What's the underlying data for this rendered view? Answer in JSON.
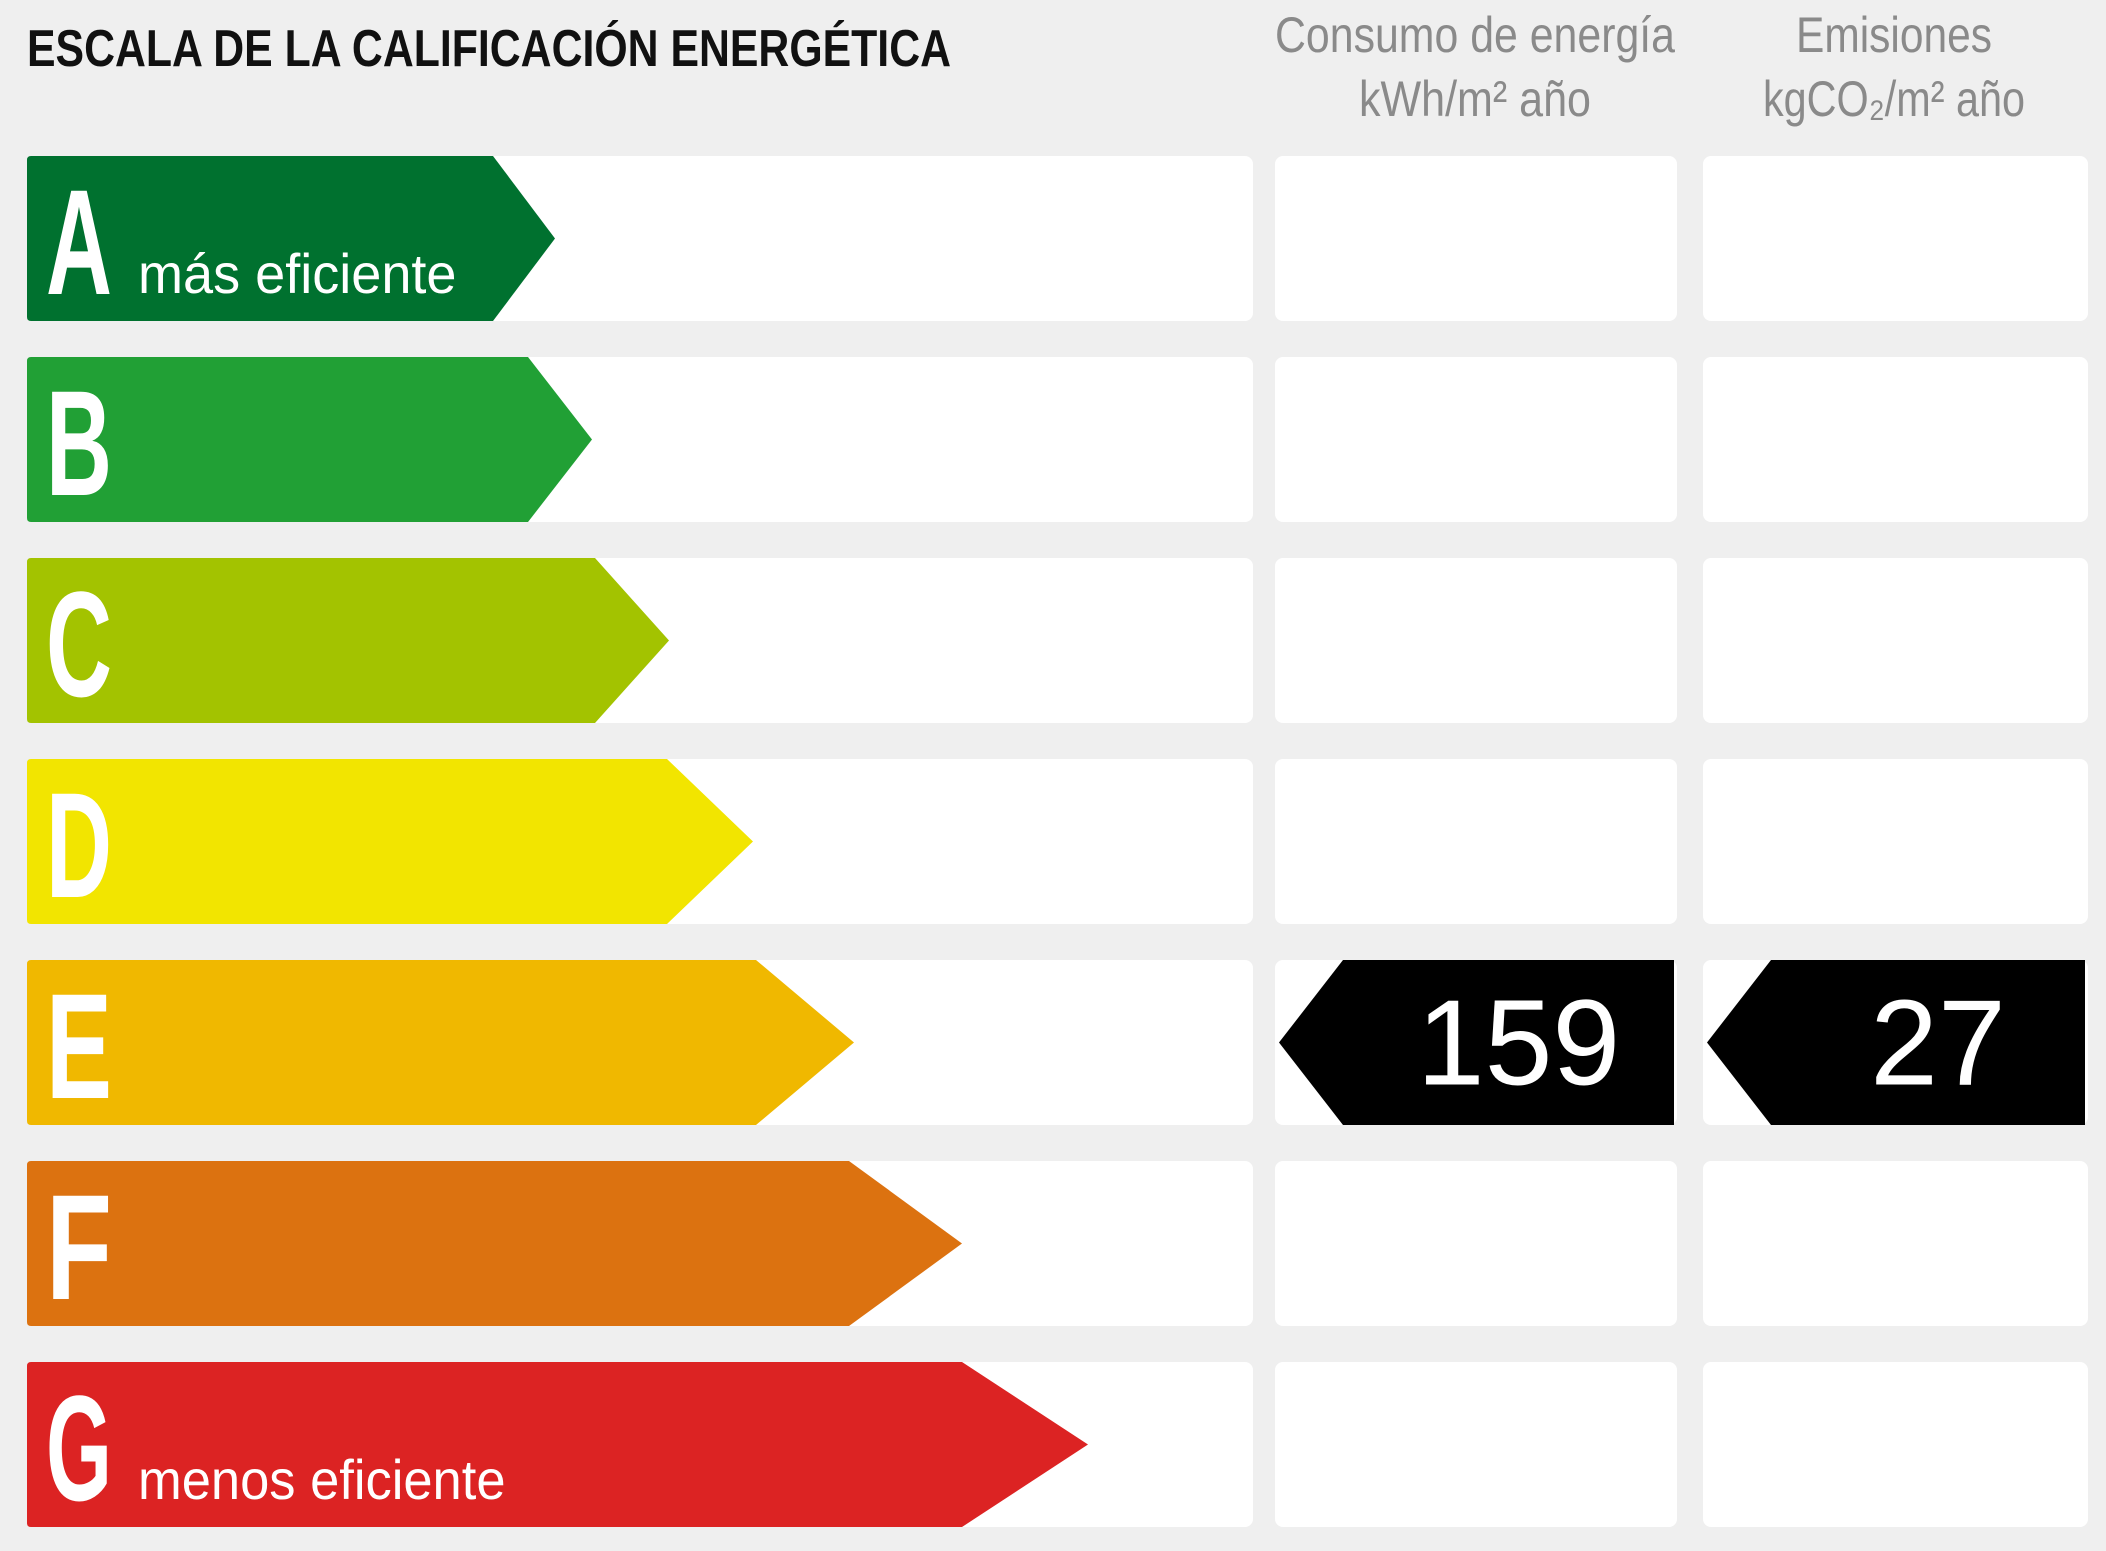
{
  "header": {
    "title": "ESCALA DE LA CALIFICACIÓN ENERGÉTICA",
    "columns": [
      {
        "title": "Consumo de energía",
        "unit": "kWh/m² año"
      },
      {
        "title": "Emisiones",
        "unit": "kgCO₂/m² año"
      }
    ]
  },
  "rows": [
    {
      "letter": "A",
      "description": "más eficiente",
      "color": "#00712f"
    },
    {
      "letter": "B",
      "color": "#21a035"
    },
    {
      "letter": "C",
      "color": "#a3c300"
    },
    {
      "letter": "D",
      "color": "#f2e500"
    },
    {
      "letter": "E",
      "color": "#f0b800",
      "consumption": 159,
      "emissions": 27
    },
    {
      "letter": "F",
      "color": "#dc7210"
    },
    {
      "letter": "G",
      "description": "menos eficiente",
      "color": "#dc2323"
    }
  ]
}
